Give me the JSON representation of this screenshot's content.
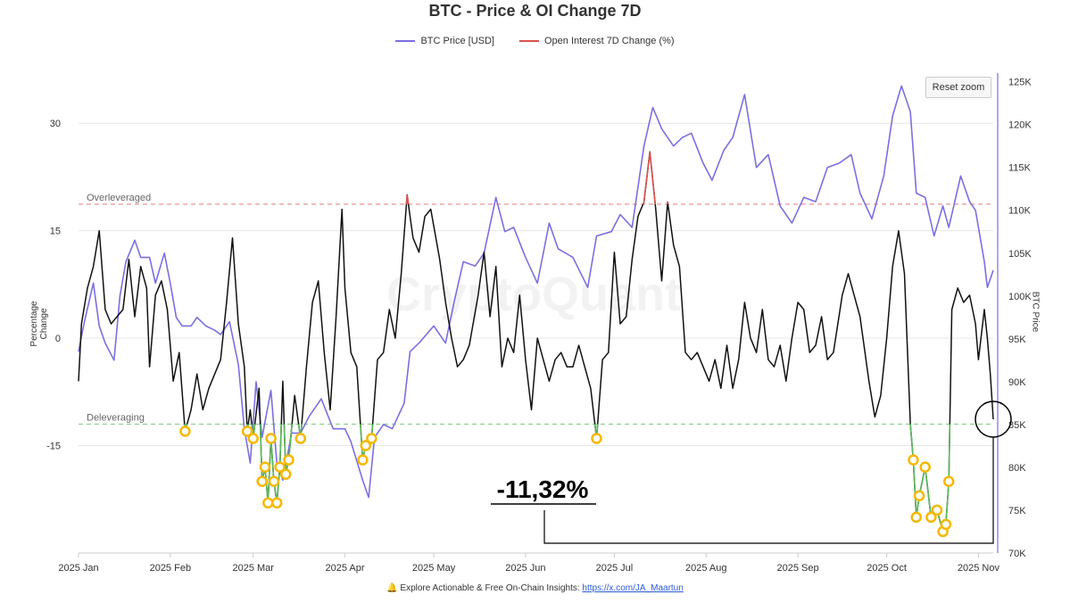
{
  "title": "BTC - Price & OI Change 7D",
  "legend": [
    {
      "name": "BTC Price [USD]",
      "color": "#7b6fe0"
    },
    {
      "name": "Open Interest 7D Change (%)",
      "color": "#d9534f"
    }
  ],
  "reset_zoom_label": "Reset zoom",
  "watermark": "CryptoQuant",
  "footer": {
    "text": "🔔 Explore Actionable & Free On-Chain Insights:",
    "link": "https://x.com/JA_Maartun"
  },
  "annotation": {
    "text": "-11,32%"
  },
  "colors": {
    "price": "#7b6fe0",
    "oi": "#111111",
    "oi_high": "#d9534f",
    "oi_low": "#5cb85c",
    "marker": "#f5b800",
    "overleveraged_line": "#e8888c",
    "deleveraging_line": "#8fce8f"
  },
  "chart_data": {
    "type": "line",
    "title": "BTC - Price & OI Change 7D",
    "x_range": [
      "2025-01-01",
      "2025-11-06"
    ],
    "x_ticks": [
      "2025 Jan",
      "2025 Feb",
      "2025 Mar",
      "2025 Apr",
      "2025 May",
      "2025 Jun",
      "2025 Jul",
      "2025 Aug",
      "2025 Sep",
      "2025 Oct",
      "2025 Nov"
    ],
    "y_left": {
      "label": "Percentage Change",
      "ticks": [
        "30",
        "15",
        "0",
        "-15"
      ],
      "range": [
        -30,
        37
      ]
    },
    "y_right": {
      "label": "BTC Price",
      "ticks": [
        "125K",
        "120K",
        "115K",
        "110K",
        "105K",
        "100K",
        "95K",
        "90K",
        "85K",
        "80K",
        "75K",
        "70K"
      ],
      "range": [
        70000,
        126000
      ]
    },
    "thresholds": [
      {
        "label": "Overleveraged",
        "value": 18.7
      },
      {
        "label": "Deleveraging",
        "value": -12
      }
    ],
    "series": [
      {
        "name": "BTC Price [USD]",
        "axis": "right",
        "points": [
          [
            "2025-01-01",
            93500
          ],
          [
            "2025-01-03",
            97000
          ],
          [
            "2025-01-06",
            101500
          ],
          [
            "2025-01-08",
            96500
          ],
          [
            "2025-01-10",
            94500
          ],
          [
            "2025-01-13",
            92500
          ],
          [
            "2025-01-15",
            100000
          ],
          [
            "2025-01-17",
            104000
          ],
          [
            "2025-01-20",
            106500
          ],
          [
            "2025-01-22",
            104500
          ],
          [
            "2025-01-25",
            104500
          ],
          [
            "2025-01-27",
            101500
          ],
          [
            "2025-01-30",
            105000
          ],
          [
            "2025-02-01",
            101500
          ],
          [
            "2025-02-03",
            97500
          ],
          [
            "2025-02-05",
            96500
          ],
          [
            "2025-02-08",
            96500
          ],
          [
            "2025-02-10",
            97500
          ],
          [
            "2025-02-13",
            96500
          ],
          [
            "2025-02-16",
            96000
          ],
          [
            "2025-02-18",
            95500
          ],
          [
            "2025-02-21",
            97000
          ],
          [
            "2025-02-24",
            92000
          ],
          [
            "2025-02-26",
            84500
          ],
          [
            "2025-02-28",
            80500
          ],
          [
            "2025-03-02",
            90000
          ],
          [
            "2025-03-04",
            83500
          ],
          [
            "2025-03-07",
            89000
          ],
          [
            "2025-03-09",
            80500
          ],
          [
            "2025-03-11",
            78500
          ],
          [
            "2025-03-14",
            84000
          ],
          [
            "2025-03-17",
            84000
          ],
          [
            "2025-03-20",
            86000
          ],
          [
            "2025-03-24",
            88000
          ],
          [
            "2025-03-28",
            84500
          ],
          [
            "2025-04-01",
            84500
          ],
          [
            "2025-04-03",
            83000
          ],
          [
            "2025-04-07",
            78500
          ],
          [
            "2025-04-09",
            76500
          ],
          [
            "2025-04-11",
            83500
          ],
          [
            "2025-04-14",
            85000
          ],
          [
            "2025-04-17",
            84500
          ],
          [
            "2025-04-21",
            87500
          ],
          [
            "2025-04-23",
            93500
          ],
          [
            "2025-04-26",
            94500
          ],
          [
            "2025-05-01",
            96500
          ],
          [
            "2025-05-05",
            94500
          ],
          [
            "2025-05-08",
            99500
          ],
          [
            "2025-05-11",
            104000
          ],
          [
            "2025-05-15",
            103500
          ],
          [
            "2025-05-18",
            105000
          ],
          [
            "2025-05-22",
            111500
          ],
          [
            "2025-05-25",
            107500
          ],
          [
            "2025-05-28",
            108000
          ],
          [
            "2025-06-01",
            104500
          ],
          [
            "2025-06-05",
            101500
          ],
          [
            "2025-06-09",
            108500
          ],
          [
            "2025-06-12",
            105500
          ],
          [
            "2025-06-17",
            104500
          ],
          [
            "2025-06-22",
            101000
          ],
          [
            "2025-06-25",
            107000
          ],
          [
            "2025-06-30",
            107500
          ],
          [
            "2025-07-03",
            109500
          ],
          [
            "2025-07-07",
            108000
          ],
          [
            "2025-07-11",
            117500
          ],
          [
            "2025-07-14",
            122000
          ],
          [
            "2025-07-17",
            119500
          ],
          [
            "2025-07-21",
            117500
          ],
          [
            "2025-07-24",
            118500
          ],
          [
            "2025-07-27",
            119000
          ],
          [
            "2025-07-31",
            115500
          ],
          [
            "2025-08-03",
            113500
          ],
          [
            "2025-08-07",
            117000
          ],
          [
            "2025-08-10",
            118500
          ],
          [
            "2025-08-14",
            123500
          ],
          [
            "2025-08-18",
            115000
          ],
          [
            "2025-08-22",
            116500
          ],
          [
            "2025-08-26",
            110500
          ],
          [
            "2025-08-30",
            108500
          ],
          [
            "2025-09-03",
            111500
          ],
          [
            "2025-09-07",
            111000
          ],
          [
            "2025-09-11",
            115000
          ],
          [
            "2025-09-15",
            115500
          ],
          [
            "2025-09-19",
            116500
          ],
          [
            "2025-09-22",
            112000
          ],
          [
            "2025-09-26",
            109000
          ],
          [
            "2025-09-30",
            114000
          ],
          [
            "2025-10-03",
            121000
          ],
          [
            "2025-10-06",
            124500
          ],
          [
            "2025-10-09",
            121500
          ],
          [
            "2025-10-11",
            112000
          ],
          [
            "2025-10-14",
            111500
          ],
          [
            "2025-10-17",
            107000
          ],
          [
            "2025-10-20",
            110500
          ],
          [
            "2025-10-22",
            108000
          ],
          [
            "2025-10-26",
            114000
          ],
          [
            "2025-10-29",
            111000
          ],
          [
            "2025-10-31",
            110000
          ],
          [
            "2025-11-03",
            104000
          ],
          [
            "2025-11-04",
            101000
          ],
          [
            "2025-11-06",
            103000
          ]
        ]
      },
      {
        "name": "Open Interest 7D Change (%)",
        "axis": "left",
        "points": [
          [
            "2025-01-01",
            -6
          ],
          [
            "2025-01-02",
            2
          ],
          [
            "2025-01-04",
            7
          ],
          [
            "2025-01-06",
            10
          ],
          [
            "2025-01-08",
            15
          ],
          [
            "2025-01-10",
            4
          ],
          [
            "2025-01-12",
            2
          ],
          [
            "2025-01-14",
            3
          ],
          [
            "2025-01-16",
            4
          ],
          [
            "2025-01-18",
            11
          ],
          [
            "2025-01-20",
            3
          ],
          [
            "2025-01-22",
            10
          ],
          [
            "2025-01-24",
            7
          ],
          [
            "2025-01-25",
            -4
          ],
          [
            "2025-01-27",
            6
          ],
          [
            "2025-01-29",
            8
          ],
          [
            "2025-01-31",
            4
          ],
          [
            "2025-02-02",
            -6
          ],
          [
            "2025-02-04",
            -2
          ],
          [
            "2025-02-06",
            -13
          ],
          [
            "2025-02-08",
            -10
          ],
          [
            "2025-02-10",
            -5
          ],
          [
            "2025-02-12",
            -10
          ],
          [
            "2025-02-14",
            -7
          ],
          [
            "2025-02-16",
            -5
          ],
          [
            "2025-02-18",
            -3
          ],
          [
            "2025-02-20",
            5
          ],
          [
            "2025-02-22",
            14
          ],
          [
            "2025-02-24",
            2
          ],
          [
            "2025-02-26",
            -4
          ],
          [
            "2025-02-27",
            -13
          ],
          [
            "2025-02-28",
            -10
          ],
          [
            "2025-03-01",
            -14
          ],
          [
            "2025-03-03",
            -7
          ],
          [
            "2025-03-04",
            -20
          ],
          [
            "2025-03-05",
            -18
          ],
          [
            "2025-03-06",
            -23
          ],
          [
            "2025-03-07",
            -14
          ],
          [
            "2025-03-08",
            -20
          ],
          [
            "2025-03-09",
            -23
          ],
          [
            "2025-03-10",
            -18
          ],
          [
            "2025-03-11",
            -6
          ],
          [
            "2025-03-12",
            -19
          ],
          [
            "2025-03-13",
            -17
          ],
          [
            "2025-03-15",
            -8
          ],
          [
            "2025-03-17",
            -14
          ],
          [
            "2025-03-19",
            -4
          ],
          [
            "2025-03-21",
            5
          ],
          [
            "2025-03-23",
            8
          ],
          [
            "2025-03-25",
            -2
          ],
          [
            "2025-03-27",
            -10
          ],
          [
            "2025-03-29",
            3
          ],
          [
            "2025-03-31",
            18
          ],
          [
            "2025-04-01",
            7
          ],
          [
            "2025-04-03",
            -2
          ],
          [
            "2025-04-05",
            -4
          ],
          [
            "2025-04-07",
            -17
          ],
          [
            "2025-04-08",
            -15
          ],
          [
            "2025-04-10",
            -14
          ],
          [
            "2025-04-12",
            -3
          ],
          [
            "2025-04-14",
            -2
          ],
          [
            "2025-04-16",
            4
          ],
          [
            "2025-04-18",
            0
          ],
          [
            "2025-04-20",
            9
          ],
          [
            "2025-04-22",
            20
          ],
          [
            "2025-04-24",
            14
          ],
          [
            "2025-04-26",
            12
          ],
          [
            "2025-04-28",
            17
          ],
          [
            "2025-04-30",
            18
          ],
          [
            "2025-05-03",
            11
          ],
          [
            "2025-05-05",
            5
          ],
          [
            "2025-05-07",
            0
          ],
          [
            "2025-05-09",
            -4
          ],
          [
            "2025-05-11",
            -3
          ],
          [
            "2025-05-13",
            -1
          ],
          [
            "2025-05-16",
            6
          ],
          [
            "2025-05-18",
            12
          ],
          [
            "2025-05-20",
            3
          ],
          [
            "2025-05-22",
            10
          ],
          [
            "2025-05-24",
            -4
          ],
          [
            "2025-05-26",
            0
          ],
          [
            "2025-05-28",
            -2
          ],
          [
            "2025-05-30",
            6
          ],
          [
            "2025-06-01",
            -3
          ],
          [
            "2025-06-03",
            -10
          ],
          [
            "2025-06-05",
            0
          ],
          [
            "2025-06-07",
            -3
          ],
          [
            "2025-06-09",
            -6
          ],
          [
            "2025-06-11",
            -3
          ],
          [
            "2025-06-13",
            -2
          ],
          [
            "2025-06-15",
            -4
          ],
          [
            "2025-06-17",
            -4
          ],
          [
            "2025-06-19",
            -1
          ],
          [
            "2025-06-21",
            -4
          ],
          [
            "2025-06-23",
            -7
          ],
          [
            "2025-06-25",
            -14
          ],
          [
            "2025-06-27",
            -3
          ],
          [
            "2025-06-29",
            -2
          ],
          [
            "2025-07-01",
            12
          ],
          [
            "2025-07-03",
            2
          ],
          [
            "2025-07-05",
            3
          ],
          [
            "2025-07-07",
            11
          ],
          [
            "2025-07-09",
            17
          ],
          [
            "2025-07-11",
            19
          ],
          [
            "2025-07-13",
            26
          ],
          [
            "2025-07-15",
            18
          ],
          [
            "2025-07-17",
            8
          ],
          [
            "2025-07-19",
            19
          ],
          [
            "2025-07-21",
            13
          ],
          [
            "2025-07-23",
            10
          ],
          [
            "2025-07-25",
            -2
          ],
          [
            "2025-07-27",
            -3
          ],
          [
            "2025-07-29",
            -2
          ],
          [
            "2025-07-31",
            -4
          ],
          [
            "2025-08-02",
            -6
          ],
          [
            "2025-08-04",
            -3
          ],
          [
            "2025-08-06",
            -7
          ],
          [
            "2025-08-08",
            -1
          ],
          [
            "2025-08-10",
            -7
          ],
          [
            "2025-08-12",
            -3
          ],
          [
            "2025-08-14",
            5
          ],
          [
            "2025-08-16",
            0
          ],
          [
            "2025-08-18",
            -2
          ],
          [
            "2025-08-20",
            4
          ],
          [
            "2025-08-22",
            -3
          ],
          [
            "2025-08-24",
            -4
          ],
          [
            "2025-08-26",
            -1
          ],
          [
            "2025-08-28",
            -6
          ],
          [
            "2025-08-30",
            0
          ],
          [
            "2025-09-01",
            5
          ],
          [
            "2025-09-03",
            4
          ],
          [
            "2025-09-05",
            -2
          ],
          [
            "2025-09-07",
            -1
          ],
          [
            "2025-09-09",
            3
          ],
          [
            "2025-09-11",
            -3
          ],
          [
            "2025-09-13",
            -2
          ],
          [
            "2025-09-16",
            6
          ],
          [
            "2025-09-18",
            9
          ],
          [
            "2025-09-20",
            6
          ],
          [
            "2025-09-22",
            3
          ],
          [
            "2025-09-25",
            -6
          ],
          [
            "2025-09-27",
            -11
          ],
          [
            "2025-09-29",
            -8
          ],
          [
            "2025-10-01",
            0
          ],
          [
            "2025-10-03",
            10
          ],
          [
            "2025-10-05",
            15
          ],
          [
            "2025-10-07",
            9
          ],
          [
            "2025-10-09",
            -12
          ],
          [
            "2025-10-10",
            -17
          ],
          [
            "2025-10-11",
            -25
          ],
          [
            "2025-10-12",
            -22
          ],
          [
            "2025-10-14",
            -18
          ],
          [
            "2025-10-16",
            -25
          ],
          [
            "2025-10-18",
            -24
          ],
          [
            "2025-10-20",
            -27
          ],
          [
            "2025-10-21",
            -26
          ],
          [
            "2025-10-22",
            -20
          ],
          [
            "2025-10-23",
            4
          ],
          [
            "2025-10-25",
            7
          ],
          [
            "2025-10-27",
            5
          ],
          [
            "2025-10-29",
            6
          ],
          [
            "2025-10-31",
            2
          ],
          [
            "2025-11-01",
            -3
          ],
          [
            "2025-11-03",
            4
          ],
          [
            "2025-11-04",
            0
          ],
          [
            "2025-11-05",
            -5
          ],
          [
            "2025-11-06",
            -11.32
          ]
        ]
      }
    ]
  }
}
